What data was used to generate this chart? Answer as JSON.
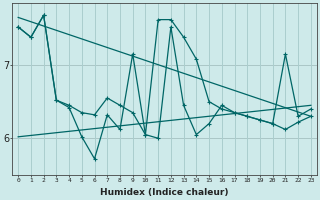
{
  "xlabel": "Humidex (Indice chaleur)",
  "bg_color": "#ceeaea",
  "line_color": "#006666",
  "grid_color": "#aacece",
  "red_line_color": "#dd0000",
  "x_ticks": [
    0,
    1,
    2,
    3,
    4,
    5,
    6,
    7,
    8,
    9,
    10,
    11,
    12,
    13,
    14,
    15,
    16,
    17,
    18,
    19,
    20,
    21,
    22,
    23
  ],
  "y_ticks": [
    6,
    7
  ],
  "ylim": [
    5.5,
    7.85
  ],
  "xlim": [
    -0.5,
    23.5
  ],
  "hlines": [
    6.0,
    7.0
  ],
  "series_zigzag_x": [
    0,
    1,
    2,
    3,
    4,
    5,
    6,
    7,
    8,
    9,
    10,
    11,
    12,
    13,
    14,
    15,
    16,
    17,
    18,
    19,
    20,
    21,
    22,
    23
  ],
  "series_zigzag_y": [
    7.52,
    7.38,
    7.68,
    6.52,
    6.42,
    6.02,
    5.72,
    6.32,
    6.12,
    7.15,
    6.05,
    7.62,
    7.62,
    7.38,
    7.08,
    6.5,
    6.4,
    6.35,
    6.3,
    6.25,
    6.2,
    7.15,
    6.3,
    6.4
  ],
  "series_trend_x": [
    0,
    1,
    2,
    3,
    4,
    5,
    6,
    7,
    8,
    9,
    10,
    11,
    12,
    13,
    14,
    15,
    16,
    17,
    18,
    19,
    20,
    21,
    22,
    23
  ],
  "series_trend_y": [
    7.52,
    7.38,
    7.68,
    6.52,
    6.45,
    6.35,
    6.32,
    6.55,
    6.45,
    6.35,
    6.05,
    6.0,
    7.52,
    6.45,
    6.05,
    6.2,
    6.45,
    6.35,
    6.3,
    6.25,
    6.2,
    6.12,
    6.22,
    6.3
  ],
  "trend_line_x": [
    0,
    23
  ],
  "trend_line_y": [
    7.65,
    6.3
  ],
  "rising_line_x": [
    0,
    23
  ],
  "rising_line_y": [
    6.02,
    6.45
  ]
}
